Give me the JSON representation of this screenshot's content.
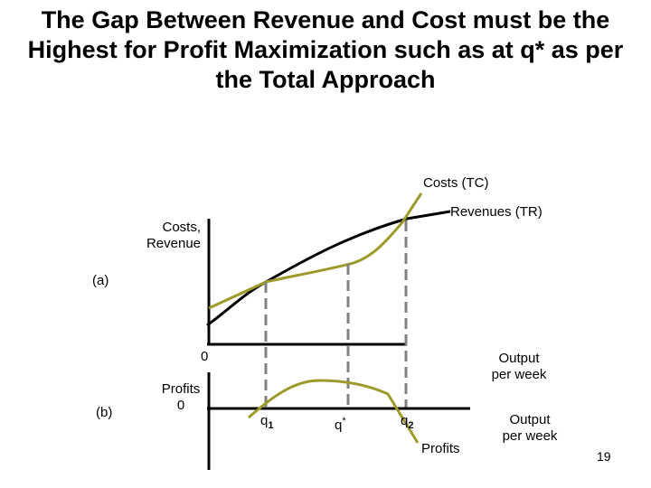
{
  "title": {
    "line1": "The Gap Between Revenue and Cost must be the",
    "line2": "Highest for Profit Maximization such as at q* as per",
    "line3": "the Total Approach"
  },
  "labels": {
    "costs_tc": "Costs (TC)",
    "revenues_tr": "Revenues (TR)",
    "y_axis_top_line1": "Costs,",
    "y_axis_top_line2": "Revenue",
    "panel_a": "(a)",
    "origin_top": "0",
    "x_axis_top_line1": "Output",
    "x_axis_top_line2": "per week",
    "panel_b": "(b)",
    "y_axis_bottom_line1": "Profits",
    "y_axis_bottom_line2": "0",
    "q1": "q",
    "q1_sub": "1",
    "qstar": "q",
    "qstar_sup": "*",
    "q2": "q",
    "q2_sub": "2",
    "profits": "Profits",
    "x_axis_bottom_line1": "Output",
    "x_axis_bottom_line2": "per week"
  },
  "page_number": "19",
  "colors": {
    "cost_curve": "#9c9a28",
    "revenue_curve": "#000000",
    "dashed_guides": "#808080",
    "axes": "#000000"
  }
}
